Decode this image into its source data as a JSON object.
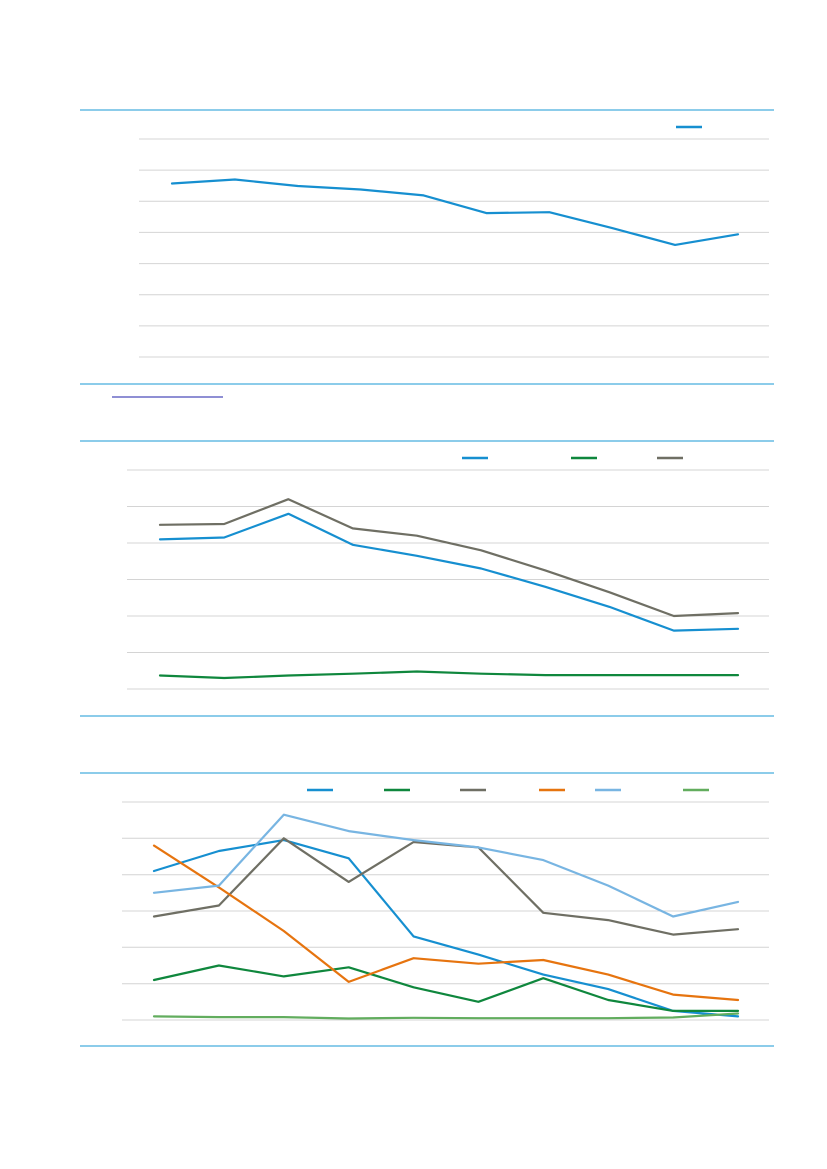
{
  "colors": {
    "rule": "#1a9ad6",
    "grid": "#d4d4d4",
    "link": "#1f1fa8"
  },
  "chart_data": [
    {
      "type": "line",
      "x": [
        1,
        2,
        3,
        4,
        5,
        6,
        7,
        8,
        9,
        10
      ],
      "ylim": [
        0,
        7
      ],
      "grid": true,
      "legend": "top-right",
      "series": [
        {
          "color": "#168fd0",
          "values": [
            5.57,
            5.7,
            5.49,
            5.38,
            5.19,
            4.62,
            4.65,
            4.14,
            3.6,
            3.94
          ]
        }
      ]
    },
    {
      "type": "line",
      "x": [
        1,
        2,
        3,
        4,
        5,
        6,
        7,
        8,
        9,
        10
      ],
      "ylim": [
        0,
        6
      ],
      "grid": true,
      "legend": "top-right",
      "series": [
        {
          "color": "#168fd0",
          "values": [
            4.1,
            4.15,
            4.8,
            3.95,
            3.65,
            3.3,
            2.8,
            2.25,
            1.6,
            1.65
          ]
        },
        {
          "color": "#0f873d",
          "values": [
            0.37,
            0.3,
            0.37,
            0.42,
            0.48,
            0.42,
            0.38,
            0.38,
            0.38,
            0.38
          ]
        },
        {
          "color": "#6f6f64",
          "values": [
            4.5,
            4.52,
            5.2,
            4.4,
            4.2,
            3.8,
            3.25,
            2.65,
            2.0,
            2.08
          ]
        }
      ]
    },
    {
      "type": "line",
      "x": [
        1,
        2,
        3,
        4,
        5,
        6,
        7,
        8,
        9,
        10
      ],
      "ylim": [
        0,
        6
      ],
      "grid": true,
      "legend": "top",
      "series": [
        {
          "color": "#168fd0",
          "values": [
            4.1,
            4.65,
            4.95,
            4.45,
            2.3,
            1.8,
            1.25,
            0.85,
            0.25,
            0.1
          ]
        },
        {
          "color": "#0f873d",
          "values": [
            1.1,
            1.5,
            1.2,
            1.45,
            0.9,
            0.5,
            1.15,
            0.55,
            0.25,
            0.25
          ]
        },
        {
          "color": "#6f6f64",
          "values": [
            2.85,
            3.15,
            5.0,
            3.8,
            4.9,
            4.75,
            2.95,
            2.75,
            2.35,
            2.5
          ]
        },
        {
          "color": "#e6740f",
          "values": [
            4.8,
            3.65,
            2.45,
            1.05,
            1.7,
            1.55,
            1.65,
            1.25,
            0.7,
            0.55
          ]
        },
        {
          "color": "#78b5e2",
          "values": [
            3.5,
            3.7,
            5.65,
            5.2,
            4.95,
            4.75,
            4.4,
            3.7,
            2.85,
            3.25
          ]
        },
        {
          "color": "#62ad5e",
          "values": [
            0.1,
            0.08,
            0.08,
            0.04,
            0.06,
            0.05,
            0.05,
            0.05,
            0.07,
            0.18
          ]
        }
      ]
    }
  ]
}
